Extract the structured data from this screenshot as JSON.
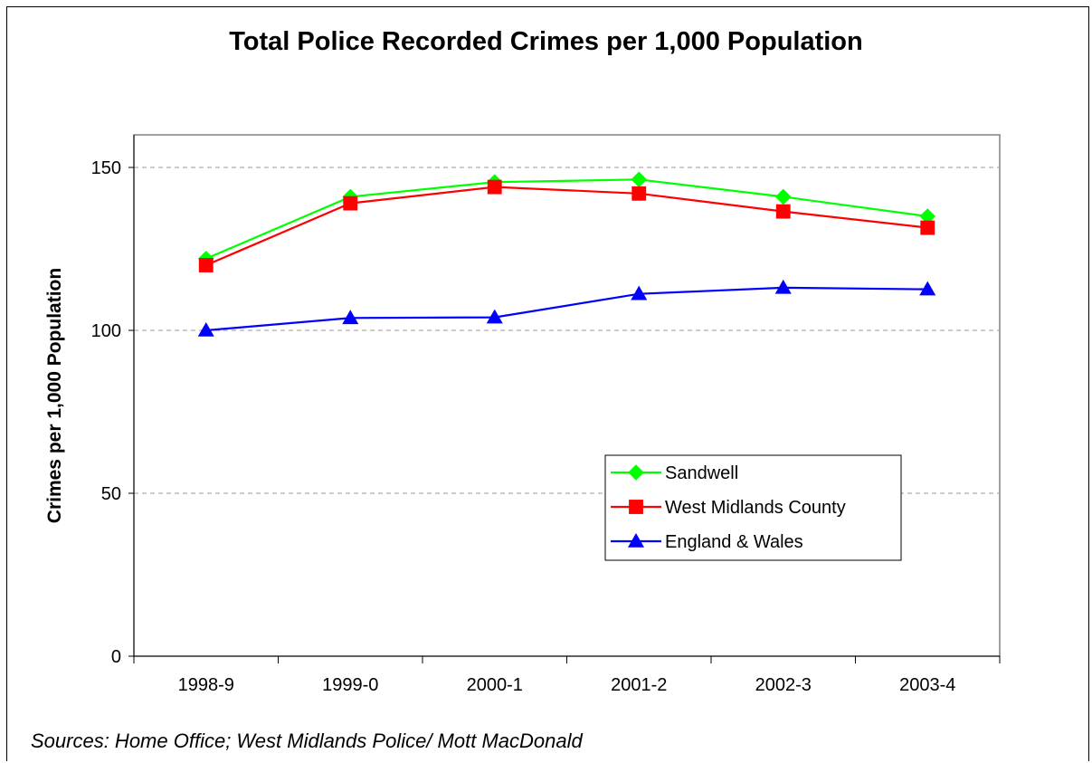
{
  "chart_data": {
    "type": "line",
    "title": "Total Police Recorded Crimes per 1,000 Population",
    "ylabel": "Crimes per 1,000 Population",
    "xlabel": "",
    "categories": [
      "1998-9",
      "1999-0",
      "2000-1",
      "2001-2",
      "2002-3",
      "2003-4"
    ],
    "ylim": [
      0,
      160
    ],
    "yticks": [
      0,
      50,
      100,
      150
    ],
    "grid": true,
    "legend_position": "inside-right",
    "series": [
      {
        "name": "Sandwell",
        "color": "#00ff00",
        "marker": "diamond",
        "values": [
          122,
          141,
          145.5,
          146.3,
          141,
          135
        ]
      },
      {
        "name": "West Midlands County",
        "color": "#ff0000",
        "marker": "square",
        "values": [
          120,
          139,
          144,
          142,
          136.5,
          131.5
        ]
      },
      {
        "name": "England & Wales",
        "color": "#0000ff",
        "marker": "triangle",
        "values": [
          100,
          103.8,
          104,
          111.2,
          113.1,
          112.6
        ]
      }
    ]
  },
  "source_note": "Sources: Home Office; West Midlands Police/ Mott MacDonald"
}
